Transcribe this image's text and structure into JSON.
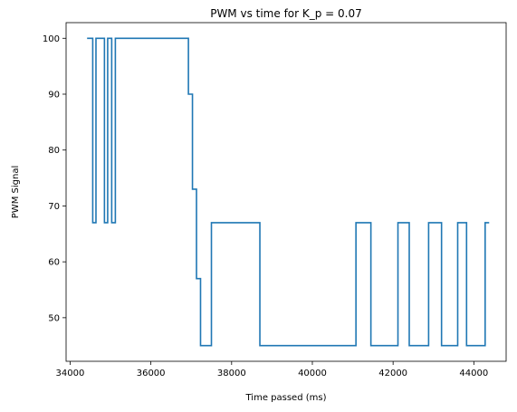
{
  "chart_data": {
    "type": "line",
    "title": "PWM vs time for K_p = 0.07",
    "xlabel": "Time passed (ms)",
    "ylabel": "PWM Signal",
    "xlim": [
      33900,
      44800
    ],
    "ylim": [
      42.2,
      102.8
    ],
    "xticks": [
      34000,
      36000,
      38000,
      40000,
      42000,
      44000
    ],
    "yticks": [
      50,
      60,
      70,
      80,
      90,
      100
    ],
    "grid": false,
    "line_style": "step",
    "series": [
      {
        "color": "#1f77b4",
        "points": [
          [
            34420,
            100
          ],
          [
            34560,
            100
          ],
          [
            34560,
            67
          ],
          [
            34640,
            67
          ],
          [
            34640,
            100
          ],
          [
            34850,
            100
          ],
          [
            34850,
            67
          ],
          [
            34930,
            67
          ],
          [
            34930,
            100
          ],
          [
            35030,
            100
          ],
          [
            35030,
            67
          ],
          [
            35120,
            67
          ],
          [
            35120,
            100
          ],
          [
            36930,
            100
          ],
          [
            36930,
            90
          ],
          [
            37030,
            90
          ],
          [
            37030,
            73
          ],
          [
            37130,
            73
          ],
          [
            37130,
            57
          ],
          [
            37230,
            57
          ],
          [
            37230,
            45
          ],
          [
            37500,
            45
          ],
          [
            37500,
            67
          ],
          [
            38700,
            67
          ],
          [
            38700,
            45
          ],
          [
            41080,
            45
          ],
          [
            41080,
            67
          ],
          [
            41450,
            67
          ],
          [
            41450,
            45
          ],
          [
            42120,
            45
          ],
          [
            42120,
            67
          ],
          [
            42400,
            67
          ],
          [
            42400,
            45
          ],
          [
            42880,
            45
          ],
          [
            42880,
            67
          ],
          [
            43200,
            67
          ],
          [
            43200,
            45
          ],
          [
            43600,
            45
          ],
          [
            43600,
            67
          ],
          [
            43820,
            67
          ],
          [
            43820,
            45
          ],
          [
            44280,
            45
          ],
          [
            44280,
            67
          ],
          [
            44380,
            67
          ]
        ]
      }
    ]
  }
}
